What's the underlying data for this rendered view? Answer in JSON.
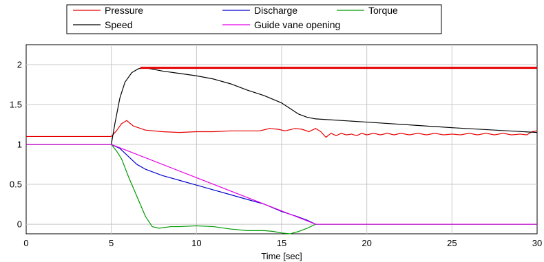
{
  "chart_data": {
    "type": "line",
    "title": "",
    "xlabel": "Time  [sec]",
    "ylabel": "",
    "xlim": [
      0,
      30
    ],
    "ylim": [
      -0.12,
      2.25
    ],
    "grid": true,
    "legend_position": "top",
    "x_ticks": [
      0,
      5,
      10,
      15,
      20,
      25,
      30
    ],
    "x_tick_labels": [
      "0",
      "5",
      "10",
      "15",
      "20",
      "25",
      "30"
    ],
    "y_ticks": [
      0,
      0.5,
      1,
      1.5,
      2
    ],
    "y_tick_labels": [
      "0",
      "0.5",
      "1",
      "1.5",
      "2"
    ],
    "legend": [
      {
        "name": "Pressure",
        "color": "#e60000"
      },
      {
        "name": "Discharge",
        "color": "#0000cc"
      },
      {
        "name": "Torque",
        "color": "#009900"
      },
      {
        "name": "Speed",
        "color": "#000000"
      },
      {
        "name": "Guide vane opening",
        "color": "#e600e6"
      }
    ],
    "series": [
      {
        "name": "Pressure",
        "color": "#e60000",
        "points": [
          [
            0,
            1.1
          ],
          [
            5,
            1.1
          ],
          [
            5.3,
            1.17
          ],
          [
            5.6,
            1.26
          ],
          [
            5.9,
            1.3
          ],
          [
            6.3,
            1.23
          ],
          [
            7,
            1.18
          ],
          [
            8,
            1.16
          ],
          [
            9,
            1.15
          ],
          [
            10,
            1.16
          ],
          [
            11,
            1.16
          ],
          [
            12,
            1.17
          ],
          [
            13,
            1.17
          ],
          [
            13.7,
            1.17
          ],
          [
            14.3,
            1.2
          ],
          [
            14.8,
            1.19
          ],
          [
            15.2,
            1.17
          ],
          [
            15.8,
            1.2
          ],
          [
            16.2,
            1.19
          ],
          [
            16.6,
            1.16
          ],
          [
            17,
            1.2
          ],
          [
            17.3,
            1.16
          ],
          [
            17.6,
            1.09
          ],
          [
            17.9,
            1.14
          ],
          [
            18.2,
            1.11
          ],
          [
            18.5,
            1.14
          ],
          [
            18.8,
            1.12
          ],
          [
            19.1,
            1.13
          ],
          [
            19.4,
            1.11
          ],
          [
            19.7,
            1.14
          ],
          [
            20,
            1.12
          ],
          [
            20.4,
            1.14
          ],
          [
            20.8,
            1.12
          ],
          [
            21.2,
            1.14
          ],
          [
            21.6,
            1.12
          ],
          [
            22,
            1.14
          ],
          [
            22.5,
            1.12
          ],
          [
            23,
            1.14
          ],
          [
            23.5,
            1.12
          ],
          [
            24,
            1.14
          ],
          [
            24.5,
            1.12
          ],
          [
            25,
            1.13
          ],
          [
            25.5,
            1.12
          ],
          [
            26,
            1.14
          ],
          [
            26.5,
            1.12
          ],
          [
            27,
            1.14
          ],
          [
            27.5,
            1.12
          ],
          [
            28,
            1.14
          ],
          [
            28.5,
            1.12
          ],
          [
            29,
            1.13
          ],
          [
            29.4,
            1.12
          ],
          [
            29.7,
            1.16
          ],
          [
            30,
            1.17
          ]
        ]
      },
      {
        "name": "Discharge",
        "color": "#0000cc",
        "points": [
          [
            0,
            1.0
          ],
          [
            5,
            1.0
          ],
          [
            5.5,
            0.95
          ],
          [
            6,
            0.85
          ],
          [
            6.5,
            0.75
          ],
          [
            7,
            0.69
          ],
          [
            8,
            0.61
          ],
          [
            9,
            0.55
          ],
          [
            10,
            0.49
          ],
          [
            11,
            0.43
          ],
          [
            12,
            0.37
          ],
          [
            13,
            0.31
          ],
          [
            14,
            0.25
          ],
          [
            15,
            0.16
          ],
          [
            16,
            0.09
          ],
          [
            16.5,
            0.05
          ],
          [
            17,
            0.0
          ],
          [
            30,
            0.0
          ]
        ]
      },
      {
        "name": "Torque",
        "color": "#009900",
        "points": [
          [
            0,
            1.0
          ],
          [
            5,
            1.0
          ],
          [
            5.3,
            0.92
          ],
          [
            5.6,
            0.82
          ],
          [
            6,
            0.6
          ],
          [
            6.5,
            0.35
          ],
          [
            7,
            0.1
          ],
          [
            7.4,
            -0.03
          ],
          [
            7.8,
            -0.05
          ],
          [
            8.5,
            -0.03
          ],
          [
            9,
            -0.03
          ],
          [
            10,
            -0.02
          ],
          [
            11,
            -0.03
          ],
          [
            12,
            -0.06
          ],
          [
            13,
            -0.08
          ],
          [
            14,
            -0.08
          ],
          [
            14.5,
            -0.09
          ],
          [
            15,
            -0.11
          ],
          [
            15.5,
            -0.12
          ],
          [
            16,
            -0.09
          ],
          [
            16.5,
            -0.05
          ],
          [
            17,
            0.0
          ],
          [
            30,
            0.0
          ]
        ]
      },
      {
        "name": "Speed",
        "color": "#000000",
        "points": [
          [
            0,
            1.0
          ],
          [
            5,
            1.0
          ],
          [
            5.2,
            1.25
          ],
          [
            5.5,
            1.58
          ],
          [
            5.8,
            1.78
          ],
          [
            6.2,
            1.9
          ],
          [
            6.6,
            1.95
          ],
          [
            7,
            1.96
          ],
          [
            8,
            1.92
          ],
          [
            9,
            1.89
          ],
          [
            10,
            1.86
          ],
          [
            11,
            1.82
          ],
          [
            12,
            1.76
          ],
          [
            13,
            1.68
          ],
          [
            14,
            1.61
          ],
          [
            15,
            1.52
          ],
          [
            15.5,
            1.45
          ],
          [
            16,
            1.38
          ],
          [
            16.5,
            1.34
          ],
          [
            17,
            1.32
          ],
          [
            20,
            1.28
          ],
          [
            25,
            1.21
          ],
          [
            30,
            1.15
          ]
        ]
      },
      {
        "name": "Guide vane opening",
        "color": "#e600e6",
        "points": [
          [
            0,
            1.0
          ],
          [
            5,
            1.0
          ],
          [
            17,
            0.0
          ],
          [
            30,
            0.0
          ]
        ]
      }
    ],
    "annotations": [
      {
        "type": "hline",
        "y": 1.96,
        "x_start": 6.7,
        "x_end": 30,
        "color": "#e60000"
      }
    ]
  }
}
